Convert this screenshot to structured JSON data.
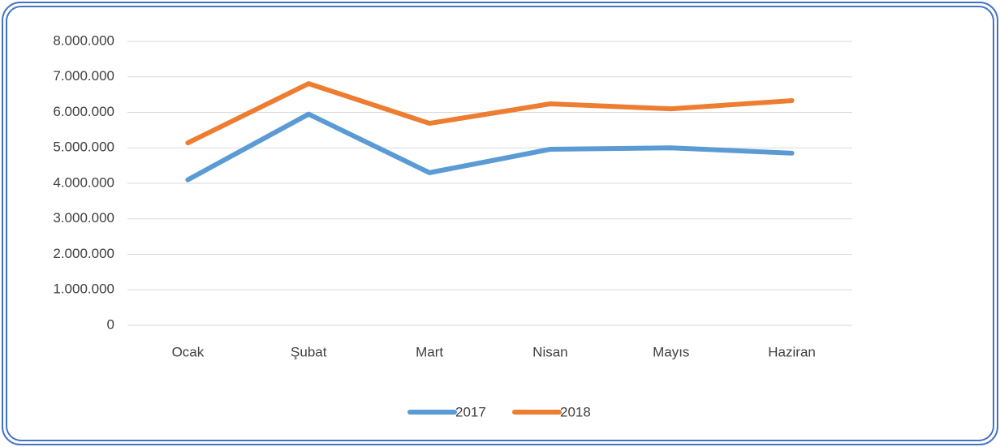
{
  "chart_data": {
    "type": "line",
    "categories": [
      "Ocak",
      "Şubat",
      "Mart",
      "Nisan",
      "Mayıs",
      "Haziran"
    ],
    "series": [
      {
        "name": "2017",
        "color": "#5b9bd5",
        "values": [
          4100000,
          5950000,
          4300000,
          4960000,
          5000000,
          4850000
        ]
      },
      {
        "name": "2018",
        "color": "#ed7d31",
        "values": [
          5140000,
          6810000,
          5690000,
          6240000,
          6100000,
          6330000
        ]
      }
    ],
    "ylim": [
      0,
      8000000
    ],
    "yticks": [
      0,
      {
        "value": 1000000,
        "label": "1.000.000"
      },
      {
        "value": 2000000,
        "label": "2.000.000"
      },
      {
        "value": 3000000,
        "label": "3.000.000"
      },
      {
        "value": 4000000,
        "label": "4.000.000"
      },
      {
        "value": 5000000,
        "label": "5.000.000"
      },
      {
        "value": 6000000,
        "label": "6.000.000"
      },
      {
        "value": 7000000,
        "label": "7.000.000"
      },
      {
        "value": 8000000,
        "label": "8.000.000"
      }
    ],
    "grid": true,
    "legend": "bottom"
  }
}
